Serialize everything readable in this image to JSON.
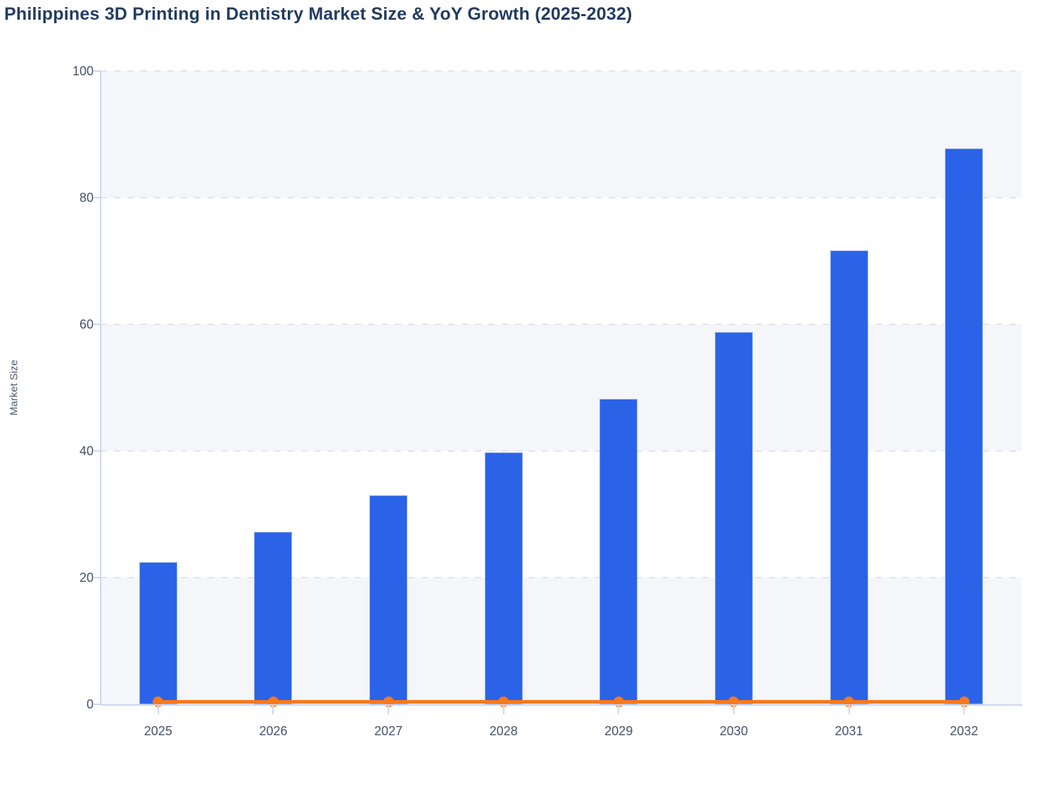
{
  "title": "Philippines 3D Printing in Dentistry Market Size & YoY Growth (2025-2032)",
  "chart_data": {
    "type": "bar",
    "title": "Philippines 3D Printing in Dentistry Market Size & YoY Growth (2025-2032)",
    "categories": [
      "2025",
      "2026",
      "2027",
      "2028",
      "2029",
      "2030",
      "2031",
      "2032"
    ],
    "series": [
      {
        "name": "Market Size",
        "type": "bar",
        "color": "#2a63e8",
        "values": [
          22.5,
          27.2,
          33.0,
          39.8,
          48.2,
          58.8,
          71.7,
          87.8
        ]
      },
      {
        "name": "YoY Growth",
        "type": "line",
        "color": "#f8791b",
        "values": [
          0.3,
          0.3,
          0.3,
          0.3,
          0.3,
          0.3,
          0.3,
          0.3
        ],
        "note": "flat orange line with round markers sitting just above the zero baseline"
      }
    ],
    "xlabel": "",
    "ylabel": "Market Size",
    "ylim": [
      0,
      100
    ],
    "yticks": [
      0,
      20,
      40,
      60,
      80,
      100
    ],
    "grid": "horizontal dashed gridlines at each y tick, alternating shaded horizontal bands every 20 units starting at 0-20",
    "legend": "none"
  },
  "colors": {
    "bar_fill": "#2a63e8",
    "bar_edge": "#8fadf0",
    "line_orange": "#f8791b",
    "band_shade": "#f5f6fa",
    "gridline": "#e3e5ea",
    "axis_line": "#ccd7f0",
    "title_text": "#233c61",
    "tick_text": "#46536a",
    "axis_title_text": "#4e5a6e"
  }
}
